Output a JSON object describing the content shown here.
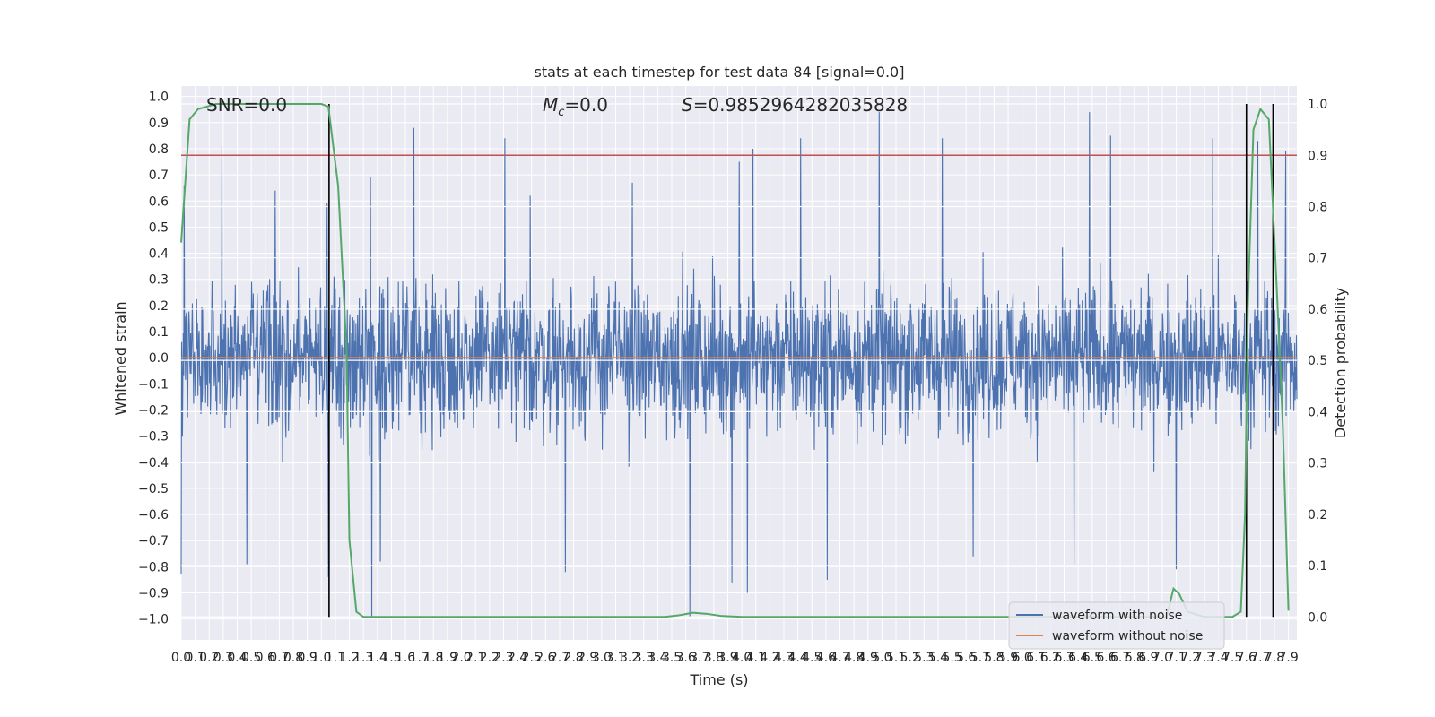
{
  "chart_data": {
    "type": "line",
    "title": "stats at each timestep for test data 84 [signal=0.0]",
    "xlabel": "Time (s)",
    "ylabel": "Whitened strain",
    "ylabel_right": "Detection probability",
    "xlim": [
      0.0,
      7.96
    ],
    "ylim": [
      -1.08,
      1.04
    ],
    "ylim_right": [
      -0.045,
      1.035
    ],
    "x_ticks": [
      0.0,
      0.1,
      0.2,
      0.3,
      0.4,
      0.5,
      0.6,
      0.7,
      0.8,
      0.9,
      1.0,
      1.1,
      1.2,
      1.3,
      1.4,
      1.5,
      1.6,
      1.7,
      1.8,
      1.9,
      2.0,
      2.1,
      2.2,
      2.3,
      2.4,
      2.5,
      2.6,
      2.7,
      2.8,
      2.9,
      3.0,
      3.1,
      3.2,
      3.3,
      3.4,
      3.5,
      3.6,
      3.7,
      3.8,
      3.9,
      4.0,
      4.1,
      4.2,
      4.3,
      4.4,
      4.5,
      4.6,
      4.7,
      4.8,
      4.9,
      5.0,
      5.1,
      5.2,
      5.3,
      5.4,
      5.5,
      5.6,
      5.7,
      5.8,
      5.9,
      6.0,
      6.1,
      6.2,
      6.3,
      6.4,
      6.5,
      6.6,
      6.7,
      6.8,
      6.9,
      7.0,
      7.1,
      7.2,
      7.3,
      7.4,
      7.5,
      7.6,
      7.7,
      7.8,
      7.9
    ],
    "y_ticks": [
      "1.0",
      "0.9",
      "0.8",
      "0.7",
      "0.6",
      "0.5",
      "0.4",
      "0.3",
      "0.2",
      "0.1",
      "0.0",
      "−0.1",
      "−0.2",
      "−0.3",
      "−0.4",
      "−0.5",
      "−0.6",
      "−0.7",
      "−0.8",
      "−0.9",
      "−1.0"
    ],
    "y_ticks_right": [
      "1.0",
      "0.9",
      "0.8",
      "0.7",
      "0.6",
      "0.5",
      "0.4",
      "0.3",
      "0.2",
      "0.1",
      "0.0"
    ],
    "annotations": {
      "snr": "SNR=0.0",
      "mc_symbol": "M",
      "mc_sub": "c",
      "mc_value": "=0.0",
      "s_symbol": "S",
      "s_value": "=0.9852964282035828"
    },
    "threshold_line": {
      "y_right": 0.9,
      "color": "#c44e52"
    },
    "vertical_lines_x": [
      1.055,
      7.6,
      7.79
    ],
    "legend": {
      "position": "lower-right",
      "entries": [
        {
          "label": "waveform with noise",
          "color": "#4c72b0"
        },
        {
          "label": "waveform without noise",
          "color": "#dd8452"
        }
      ]
    },
    "series": [
      {
        "name": "waveform with noise",
        "color": "#4c72b0",
        "axis": "left",
        "envelope": {
          "typical_amplitude": 0.35,
          "max": 0.94,
          "min": -0.99
        },
        "spikes": [
          [
            0.02,
            0.66
          ],
          [
            0.29,
            0.81
          ],
          [
            0.67,
            0.64
          ],
          [
            1.04,
            0.59
          ],
          [
            1.35,
            0.69
          ],
          [
            1.66,
            0.88
          ],
          [
            2.31,
            0.84
          ],
          [
            2.49,
            0.62
          ],
          [
            3.22,
            0.67
          ],
          [
            3.98,
            0.75
          ],
          [
            4.08,
            0.8
          ],
          [
            4.42,
            0.84
          ],
          [
            4.98,
            0.94
          ],
          [
            5.43,
            0.84
          ],
          [
            6.48,
            0.94
          ],
          [
            6.63,
            0.85
          ],
          [
            7.36,
            0.84
          ],
          [
            7.68,
            0.83
          ],
          [
            7.88,
            0.79
          ],
          [
            0.0,
            -0.83
          ],
          [
            0.47,
            -0.79
          ],
          [
            1.05,
            -0.84
          ],
          [
            1.36,
            -0.99
          ],
          [
            1.42,
            -0.78
          ],
          [
            2.74,
            -0.82
          ],
          [
            3.63,
            -0.99
          ],
          [
            3.93,
            -0.86
          ],
          [
            4.04,
            -0.9
          ],
          [
            4.61,
            -0.85
          ],
          [
            5.65,
            -0.76
          ],
          [
            6.37,
            -0.79
          ],
          [
            7.1,
            -0.81
          ]
        ]
      },
      {
        "name": "waveform without noise",
        "color": "#dd8452",
        "axis": "left",
        "x": [
          0.0,
          7.96
        ],
        "y": [
          0.0,
          0.0
        ]
      },
      {
        "name": "",
        "color": "#55a868",
        "axis": "right",
        "x": [
          0.0,
          0.06,
          0.12,
          0.25,
          0.5,
          1.0,
          1.05,
          1.12,
          1.18,
          1.2,
          1.25,
          1.3,
          1.4,
          1.6,
          2.0,
          3.0,
          3.45,
          3.55,
          3.65,
          3.75,
          3.85,
          4.0,
          4.5,
          5.0,
          6.0,
          7.0,
          7.03,
          7.08,
          7.12,
          7.18,
          7.3,
          7.5,
          7.56,
          7.59,
          7.61,
          7.65,
          7.7,
          7.76,
          7.82,
          7.86,
          7.9
        ],
        "y": [
          0.73,
          0.97,
          0.99,
          1.0,
          1.0,
          1.0,
          0.995,
          0.84,
          0.52,
          0.15,
          0.01,
          0.0,
          0.0,
          0.0,
          0.0,
          0.0,
          0.0,
          0.003,
          0.008,
          0.006,
          0.002,
          0.0,
          0.0,
          0.0,
          0.0,
          0.0,
          0.0,
          0.055,
          0.045,
          0.01,
          0.0,
          0.0,
          0.01,
          0.2,
          0.6,
          0.95,
          0.99,
          0.97,
          0.62,
          0.37,
          0.012
        ]
      }
    ]
  }
}
